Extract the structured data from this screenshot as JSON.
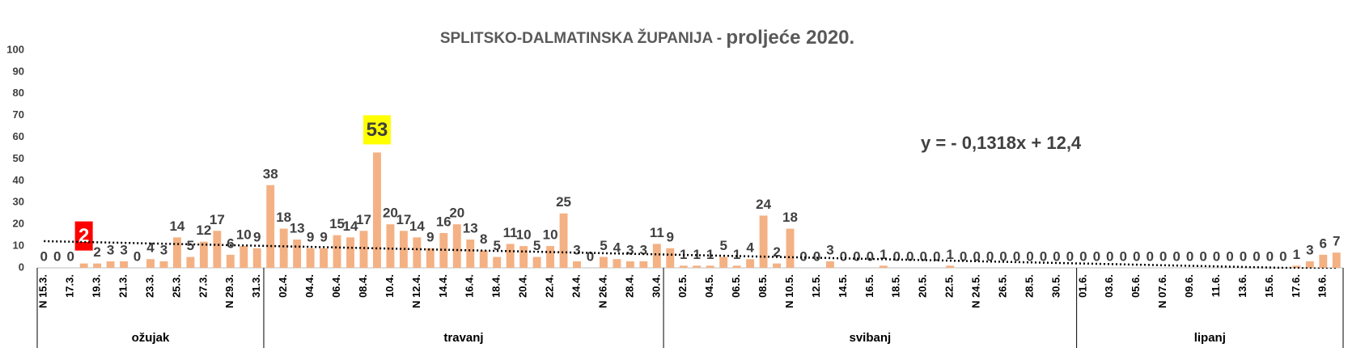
{
  "chart_data": {
    "type": "bar",
    "title": "SPLITSKO-DALMATINSKA ŽUPANIJA - ",
    "title_emphasis": "proljeće 2020.",
    "categories": [
      "N 15.3.",
      null,
      "17.3.",
      null,
      "19.3.",
      null,
      "21.3.",
      null,
      "23.3.",
      null,
      "25.3.",
      null,
      "27.3.",
      null,
      "N 29.3.",
      null,
      "31.3.",
      null,
      "02.4.",
      null,
      "04.4.",
      null,
      "06.4.",
      null,
      "08.4.",
      null,
      "10.4.",
      null,
      "N 12.4.",
      null,
      "14.4.",
      null,
      "16.4.",
      null,
      "18.4.",
      null,
      "20.4.",
      null,
      "22.4.",
      null,
      "24.4.",
      null,
      "N 26.4.",
      null,
      "28.4.",
      null,
      "30.4.",
      null,
      "02.5.",
      null,
      "04.5.",
      null,
      "06.5.",
      null,
      "08.5.",
      null,
      "N 10.5.",
      null,
      "12.5.",
      null,
      "14.5.",
      null,
      "16.5.",
      null,
      "18.5.",
      null,
      "20.5.",
      null,
      "22.5.",
      null,
      "N 24.5.",
      null,
      "26.5.",
      null,
      "28.5.",
      null,
      "30.5.",
      null,
      "01.6.",
      null,
      "03.6.",
      null,
      "05.6.",
      null,
      "N 07.6.",
      null,
      "09.6.",
      null,
      "11.6.",
      null,
      "13.6.",
      null,
      "15.6.",
      null,
      "17.6.",
      null,
      "19.6.",
      null
    ],
    "values": [
      0,
      0,
      0,
      2,
      2,
      3,
      3,
      0,
      4,
      3,
      14,
      5,
      12,
      17,
      6,
      10,
      9,
      38,
      18,
      13,
      9,
      9,
      15,
      14,
      17,
      53,
      20,
      17,
      14,
      9,
      16,
      20,
      13,
      8,
      5,
      11,
      10,
      5,
      10,
      25,
      3,
      0,
      5,
      4,
      3,
      3,
      11,
      9,
      1,
      1,
      1,
      5,
      1,
      4,
      24,
      2,
      18,
      0,
      0,
      3,
      0,
      0,
      0,
      1,
      0,
      0,
      0,
      0,
      1,
      0,
      0,
      0,
      0,
      0,
      0,
      0,
      0,
      0,
      0,
      0,
      0,
      0,
      0,
      0,
      0,
      0,
      0,
      0,
      0,
      0,
      0,
      0,
      0,
      0,
      1,
      3,
      6,
      7
    ],
    "color": "#f4b183",
    "highlight": [
      {
        "index": 3,
        "background": "#ff0000",
        "text_color": "#ffffff"
      },
      {
        "index": 25,
        "background": "#ffff00",
        "text_color": "#404040"
      }
    ],
    "groups": [
      {
        "label": "ožujak",
        "count": 17
      },
      {
        "label": "travanj",
        "count": 30
      },
      {
        "label": "svibanj",
        "count": 31
      },
      {
        "label": "lipanj",
        "count": 20
      }
    ],
    "trendline": {
      "slope": -0.1318,
      "intercept": 12.4,
      "label": "y = - 0,1318x + 12,4"
    },
    "ylim": [
      0,
      100
    ],
    "yticks": [
      0,
      10,
      20,
      30,
      40,
      50,
      60,
      70,
      80,
      90,
      100
    ],
    "grid": false
  }
}
